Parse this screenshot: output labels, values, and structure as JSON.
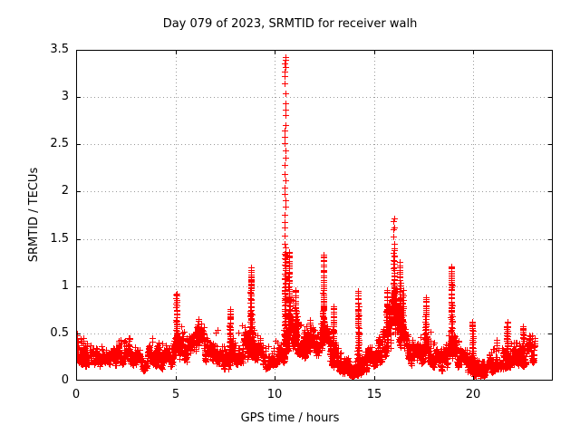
{
  "figure": {
    "background": "#ffffff",
    "text_color": "#000000"
  },
  "chart_data": {
    "type": "scatter",
    "title": "Day 079 of 2023, SRMTID for receiver walh",
    "xlabel": "GPS time / hours",
    "ylabel": "SRMTID / TECUs",
    "xlim": [
      0,
      24
    ],
    "ylim": [
      0,
      3.5
    ],
    "xticks": [
      0,
      5,
      10,
      15,
      20
    ],
    "yticks": [
      0,
      0.5,
      1,
      1.5,
      2,
      2.5,
      3,
      3.5
    ],
    "grid": true,
    "legend": "none",
    "marker": "plus",
    "marker_color": "#ff0000",
    "grid_color": "#9a9a9a",
    "axis_color": "#000000",
    "series_name": "SRMTID",
    "time_range": [
      0,
      23.1
    ],
    "samples_per_hour": 150,
    "baseline_band": [
      [
        0.0,
        0.25,
        0.5
      ],
      [
        0.15,
        0.18,
        0.4
      ],
      [
        0.5,
        0.15,
        0.33
      ],
      [
        1.0,
        0.18,
        0.36
      ],
      [
        1.5,
        0.12,
        0.26
      ],
      [
        2.0,
        0.16,
        0.36
      ],
      [
        2.5,
        0.18,
        0.4
      ],
      [
        3.0,
        0.15,
        0.34
      ],
      [
        3.4,
        0.1,
        0.24
      ],
      [
        3.8,
        0.17,
        0.4
      ],
      [
        4.2,
        0.14,
        0.38
      ],
      [
        4.6,
        0.1,
        0.3
      ],
      [
        5.0,
        0.2,
        0.45
      ],
      [
        5.3,
        0.22,
        0.5
      ],
      [
        5.7,
        0.18,
        0.42
      ],
      [
        6.1,
        0.25,
        0.58
      ],
      [
        6.4,
        0.22,
        0.52
      ],
      [
        6.8,
        0.15,
        0.38
      ],
      [
        7.1,
        0.18,
        0.45
      ],
      [
        7.5,
        0.1,
        0.3
      ],
      [
        7.9,
        0.15,
        0.4
      ],
      [
        8.3,
        0.18,
        0.48
      ],
      [
        8.8,
        0.25,
        0.55
      ],
      [
        9.1,
        0.2,
        0.45
      ],
      [
        9.4,
        0.1,
        0.28
      ],
      [
        9.8,
        0.15,
        0.33
      ],
      [
        10.1,
        0.17,
        0.38
      ],
      [
        10.4,
        0.15,
        0.32
      ],
      [
        10.6,
        0.3,
        0.7
      ],
      [
        10.9,
        0.35,
        0.75
      ],
      [
        11.1,
        0.3,
        0.6
      ],
      [
        11.4,
        0.22,
        0.45
      ],
      [
        11.8,
        0.3,
        0.55
      ],
      [
        12.1,
        0.2,
        0.42
      ],
      [
        12.5,
        0.25,
        0.6
      ],
      [
        12.9,
        0.15,
        0.38
      ],
      [
        13.3,
        0.08,
        0.25
      ],
      [
        13.7,
        0.05,
        0.18
      ],
      [
        14.0,
        0.03,
        0.14
      ],
      [
        14.3,
        0.06,
        0.22
      ],
      [
        14.7,
        0.1,
        0.28
      ],
      [
        15.0,
        0.15,
        0.35
      ],
      [
        15.4,
        0.2,
        0.5
      ],
      [
        15.7,
        0.3,
        0.7
      ],
      [
        16.0,
        0.35,
        0.9
      ],
      [
        16.3,
        0.3,
        0.75
      ],
      [
        16.6,
        0.2,
        0.48
      ],
      [
        17.0,
        0.15,
        0.35
      ],
      [
        17.4,
        0.18,
        0.4
      ],
      [
        17.7,
        0.2,
        0.5
      ],
      [
        18.0,
        0.14,
        0.34
      ],
      [
        18.4,
        0.1,
        0.28
      ],
      [
        18.9,
        0.18,
        0.45
      ],
      [
        19.2,
        0.14,
        0.38
      ],
      [
        19.6,
        0.08,
        0.28
      ],
      [
        19.9,
        0.08,
        0.3
      ],
      [
        20.15,
        0.02,
        0.14
      ],
      [
        20.5,
        0.03,
        0.16
      ],
      [
        20.8,
        0.06,
        0.22
      ],
      [
        21.0,
        0.1,
        0.28
      ],
      [
        21.4,
        0.12,
        0.32
      ],
      [
        21.8,
        0.14,
        0.32
      ],
      [
        22.2,
        0.15,
        0.35
      ],
      [
        22.6,
        0.15,
        0.38
      ],
      [
        22.9,
        0.18,
        0.42
      ],
      [
        23.1,
        0.2,
        0.45
      ]
    ],
    "spikes": [
      [
        0.05,
        0.5
      ],
      [
        5.05,
        0.92
      ],
      [
        6.15,
        0.65
      ],
      [
        7.75,
        0.76
      ],
      [
        8.8,
        1.2
      ],
      [
        10.52,
        3.42
      ],
      [
        10.72,
        1.35
      ],
      [
        11.05,
        0.95
      ],
      [
        12.45,
        1.33
      ],
      [
        12.95,
        0.78
      ],
      [
        14.2,
        0.95
      ],
      [
        15.65,
        0.95
      ],
      [
        16.0,
        1.72
      ],
      [
        16.3,
        1.25
      ],
      [
        16.45,
        0.95
      ],
      [
        17.6,
        0.88
      ],
      [
        18.9,
        1.21
      ],
      [
        19.95,
        0.62
      ],
      [
        21.7,
        0.63
      ],
      [
        22.5,
        0.58
      ]
    ]
  }
}
